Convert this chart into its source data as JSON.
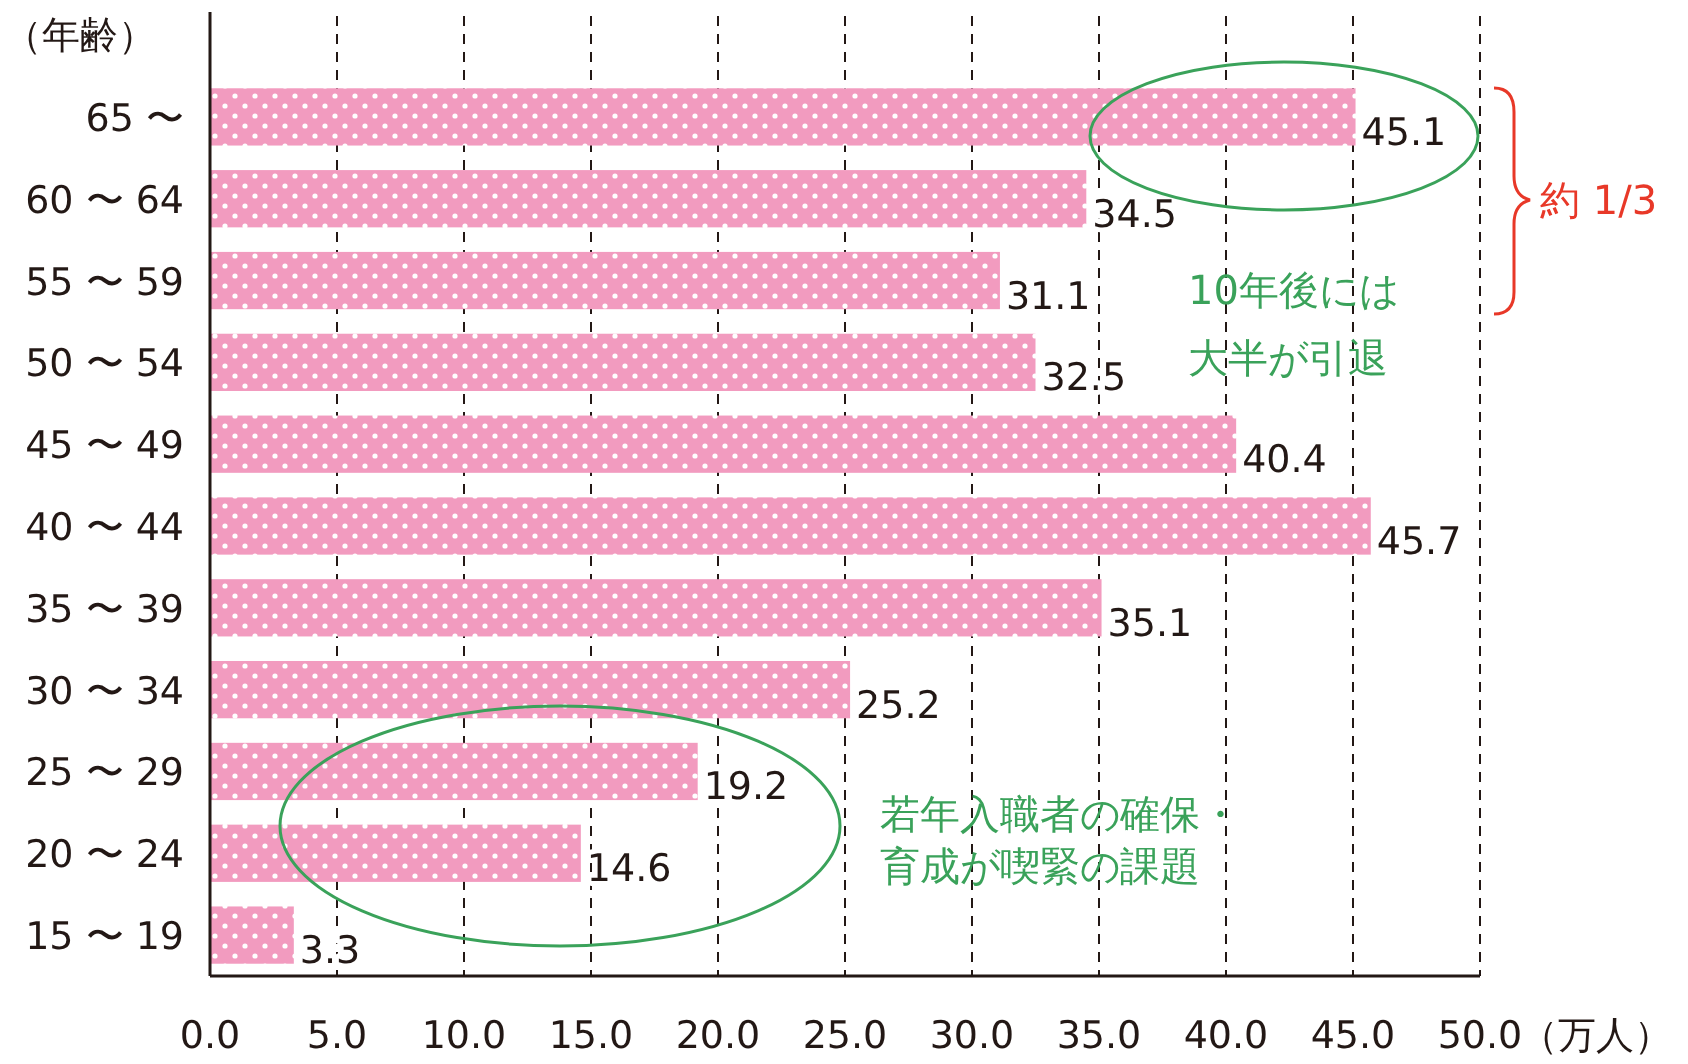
{
  "chart_data": {
    "type": "bar",
    "orientation": "horizontal",
    "ylabel": "（年齢）",
    "xlabel": "（万人）",
    "categories": [
      "65 〜",
      "60 〜 64",
      "55 〜 59",
      "50 〜 54",
      "45 〜 49",
      "40 〜 44",
      "35 〜 39",
      "30 〜 34",
      "25 〜 29",
      "20 〜 24",
      "15 〜 19"
    ],
    "values": [
      45.1,
      34.5,
      31.1,
      32.5,
      40.4,
      45.7,
      35.1,
      25.2,
      19.2,
      14.6,
      3.3
    ],
    "color": "#f29bbf",
    "data_labels": true,
    "grid": "x",
    "xlim": [
      0,
      50
    ],
    "xticks": [
      {
        "value": 0,
        "label": "0.0"
      },
      {
        "value": 5,
        "label": "5.0"
      },
      {
        "value": 10,
        "label": "10.0"
      },
      {
        "value": 15,
        "label": "15.0"
      },
      {
        "value": 20,
        "label": "20.0"
      },
      {
        "value": 25,
        "label": "25.0"
      },
      {
        "value": 30,
        "label": "30.0"
      },
      {
        "value": 35,
        "label": "35.0"
      },
      {
        "value": 40,
        "label": "40.0"
      },
      {
        "value": 45,
        "label": "45.0"
      },
      {
        "value": 50,
        "label": "50.0"
      }
    ],
    "annotations": [
      "約 1/3",
      "10年後には",
      "大半が引退",
      "若年入職者の確保・",
      "育成が喫緊の課題"
    ]
  }
}
